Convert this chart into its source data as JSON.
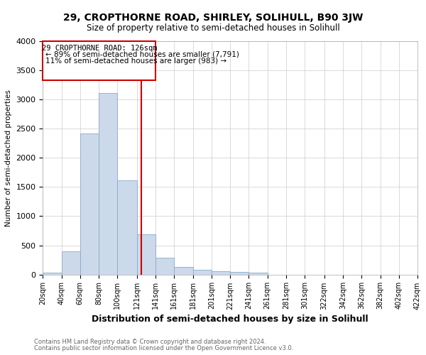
{
  "title": "29, CROPTHORNE ROAD, SHIRLEY, SOLIHULL, B90 3JW",
  "subtitle": "Size of property relative to semi-detached houses in Solihull",
  "xlabel": "Distribution of semi-detached houses by size in Solihull",
  "ylabel": "Number of semi-detached properties",
  "footer1": "Contains HM Land Registry data © Crown copyright and database right 2024.",
  "footer2": "Contains public sector information licensed under the Open Government Licence v3.0.",
  "annotation_title": "29 CROPTHORNE ROAD: 126sqm",
  "annotation_line1": "← 89% of semi-detached houses are smaller (7,791)",
  "annotation_line2": "11% of semi-detached houses are larger (983) →",
  "property_size": 126,
  "bar_color": "#ccd9ea",
  "bar_edge_color": "#8aaac8",
  "vline_color": "#cc0000",
  "annotation_box_edgecolor": "#cc0000",
  "bins": [
    20,
    40,
    60,
    80,
    100,
    121,
    141,
    161,
    181,
    201,
    221,
    241,
    261,
    281,
    301,
    322,
    342,
    362,
    382,
    402,
    422
  ],
  "bin_labels": [
    "20sqm",
    "40sqm",
    "60sqm",
    "80sqm",
    "100sqm",
    "121sqm",
    "141sqm",
    "161sqm",
    "181sqm",
    "201sqm",
    "221sqm",
    "241sqm",
    "261sqm",
    "281sqm",
    "301sqm",
    "322sqm",
    "342sqm",
    "362sqm",
    "382sqm",
    "402sqm",
    "422sqm"
  ],
  "counts": [
    30,
    400,
    2420,
    3120,
    1620,
    690,
    290,
    130,
    80,
    50,
    40,
    30,
    0,
    0,
    0,
    0,
    0,
    0,
    0,
    0
  ],
  "ylim": [
    0,
    4000
  ],
  "yticks": [
    0,
    500,
    1000,
    1500,
    2000,
    2500,
    3000,
    3500,
    4000
  ],
  "background_color": "#ffffff",
  "grid_color": "#cccccc",
  "fig_width": 6.0,
  "fig_height": 5.0,
  "dpi": 100
}
